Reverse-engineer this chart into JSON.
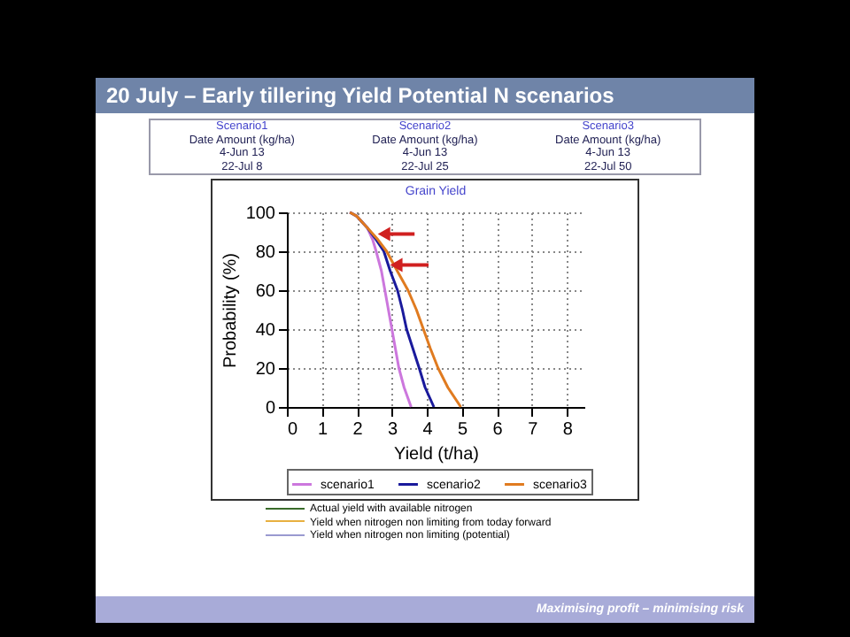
{
  "chart_data": {
    "type": "line",
    "title": "20 July – Early tillering Yield Potential N scenarios",
    "subtitle": "Grain Yield",
    "xlabel": "Yield (t/ha)",
    "ylabel": "Probability (%)",
    "annotations": [
      "Scenario1",
      "Scenario2",
      "Scenario3",
      "Date  Amount (kg/ha)",
      "Date  Amount (kg/ha)",
      "Date  Amount (kg/ha)",
      "4-Jun  13",
      "4-Jun  13",
      "4-Jun  13",
      "22-Jul  8",
      "22-Jul  25",
      "22-Jul  50",
      "Actual yield with available nitrogen",
      "Yield when nitrogen non limiting from today forward",
      "Yield when nitrogen non limiting (potential)",
      "Maximising profit – minimising risk"
    ],
    "series": [
      {
        "name": "scenario1",
        "color": "#cc77dd",
        "x": [
          1.8,
          2.0,
          2.3,
          2.45,
          2.55,
          2.7,
          2.8,
          2.9,
          3.0,
          3.1,
          3.2,
          3.35,
          3.55
        ],
        "values": [
          100,
          98,
          92,
          86,
          80,
          70,
          60,
          50,
          40,
          30,
          20,
          10,
          0
        ]
      },
      {
        "name": "scenario2",
        "color": "#1a1a9c",
        "x": [
          1.8,
          2.0,
          2.3,
          2.55,
          2.77,
          2.95,
          3.16,
          3.3,
          3.42,
          3.6,
          3.78,
          3.95,
          4.2
        ],
        "values": [
          100,
          98,
          92,
          86,
          80,
          70,
          60,
          50,
          40,
          30,
          20,
          10,
          0
        ]
      },
      {
        "name": "scenario3",
        "color": "#e07b20",
        "x": [
          1.8,
          2.0,
          2.3,
          2.6,
          2.85,
          3.15,
          3.46,
          3.7,
          3.9,
          4.1,
          4.32,
          4.6,
          4.97
        ],
        "values": [
          100,
          98,
          92,
          86,
          80,
          70,
          60,
          50,
          40,
          30,
          20,
          10,
          0
        ]
      }
    ],
    "xlim": [
      0,
      8.5
    ],
    "xticks": [
      0,
      1,
      2,
      3,
      4,
      5,
      6,
      7,
      8
    ],
    "ylim": [
      0,
      100
    ],
    "yticks": [
      0,
      20,
      40,
      60,
      80,
      100
    ],
    "grid": true,
    "legend": "bottom",
    "marker": "none",
    "line_style": "solid"
  }
}
